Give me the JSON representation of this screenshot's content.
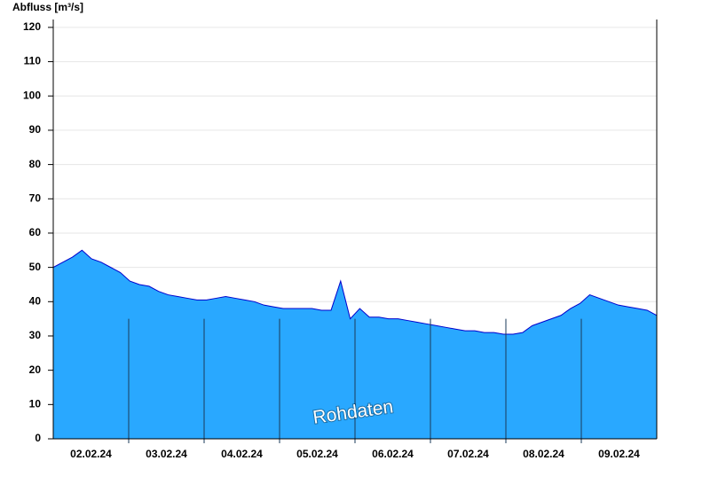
{
  "chart_data": {
    "type": "area",
    "y_label": "Abfluss [m³/s]",
    "watermark": "Rohdaten",
    "categories": [
      "02.02.24",
      "03.02.24",
      "04.02.24",
      "05.02.24",
      "06.02.24",
      "07.02.24",
      "08.02.24",
      "09.02.24"
    ],
    "series": [
      {
        "name": "Abfluss",
        "color": "#29a8ff",
        "line_color": "#0000cc",
        "values": [
          [
            50,
            51.5,
            53,
            55,
            52.5,
            51.5,
            50,
            48.5
          ],
          [
            46,
            45,
            44.5,
            43,
            42,
            41.5,
            41,
            40.5
          ],
          [
            40.5,
            41,
            41.5,
            41,
            40.5,
            40,
            39,
            38.5
          ],
          [
            38,
            38,
            38,
            38,
            37.5,
            37.5,
            46,
            35
          ],
          [
            38,
            35.5,
            35.5,
            35,
            35,
            34.5,
            34,
            33.5
          ],
          [
            33,
            32.5,
            32,
            31.5,
            31.5,
            31,
            31,
            30.5
          ],
          [
            30.5,
            31,
            33,
            34,
            35,
            36,
            38,
            39.5
          ],
          [
            42,
            41,
            40,
            39,
            38.5,
            38,
            37.5,
            36
          ]
        ]
      }
    ],
    "ylim": [
      0,
      122.3
    ],
    "yticks": [
      0,
      10,
      20,
      30,
      40,
      50,
      60,
      70,
      80,
      90,
      100,
      110,
      120
    ],
    "grid": true
  }
}
